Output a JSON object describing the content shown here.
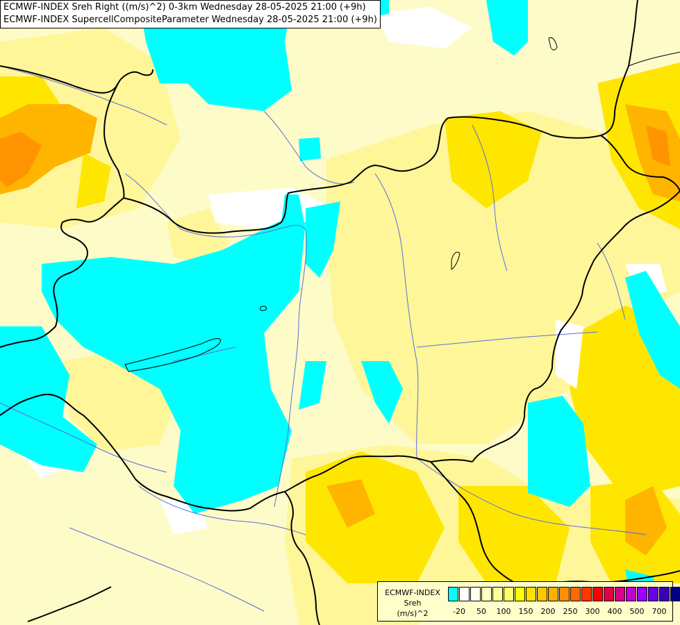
{
  "title": {
    "line1": "ECMWF-INDEX Sreh Right ((m/s)^2) 0-3km Wednesday 28-05-2025 21:00 (+9h)",
    "line2": "ECMWF-INDEX SupercellCompositeParameter Wednesday 28-05-2025 21:00 (+9h)"
  },
  "legend": {
    "line1": "ECMWF-INDEX",
    "line2": "Sreh",
    "line3": "(m/s)^2",
    "colors": [
      "#00ffff",
      "#ffffff",
      "#fffff0",
      "#ffffc0",
      "#ffff99",
      "#ffff66",
      "#ffff00",
      "#ffe000",
      "#ffc800",
      "#ffb000",
      "#ff9000",
      "#ff6a00",
      "#ff3800",
      "#ff0000",
      "#e0004a",
      "#d4008c",
      "#c000d0",
      "#9a00ff",
      "#6a00e8",
      "#3a00b4",
      "#000080"
    ],
    "ticks": [
      "-20",
      "50",
      "100",
      "150",
      "200",
      "250",
      "300",
      "400",
      "500",
      "700"
    ]
  },
  "colors": {
    "cyan": "#00ffff",
    "pale_yellow": "#fdfbc8",
    "light_yellow": "#fff790",
    "yellow": "#ffea00",
    "orange": "#ffb000",
    "border": "#000000",
    "river": "#5a6cd8"
  }
}
